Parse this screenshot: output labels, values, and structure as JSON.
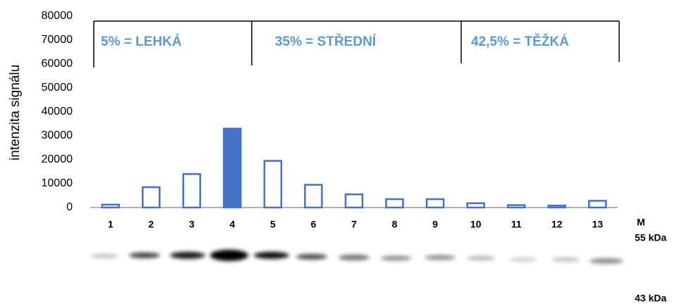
{
  "chart_data": {
    "type": "bar",
    "ylabel": "intenzita signálu",
    "categories": [
      "1",
      "2",
      "3",
      "4",
      "5",
      "6",
      "7",
      "8",
      "9",
      "10",
      "11",
      "12",
      "13"
    ],
    "values": [
      1200,
      8500,
      14000,
      33000,
      19500,
      9500,
      5500,
      3500,
      3500,
      1800,
      1000,
      800,
      2800
    ],
    "color": "#4472c4",
    "bar_fills": [
      "#ffffff",
      "#ffffff",
      "#ffffff",
      "#4472c4",
      "#ffffff",
      "#ffffff",
      "#ffffff",
      "#ffffff",
      "#ffffff",
      "#ffffff",
      "#ffffff",
      "#ffffff",
      "#ffffff"
    ],
    "ylim": [
      0,
      80000
    ],
    "yticks": [
      0,
      10000,
      20000,
      30000,
      40000,
      50000,
      60000,
      70000,
      80000
    ],
    "annotations": [
      "5% = LEHKÁ",
      "35% = STŘEDNÍ",
      "42,5% = TĚŽKÁ"
    ],
    "blot_labels": [
      "M",
      "55 kDa",
      "43 kDa"
    ]
  }
}
